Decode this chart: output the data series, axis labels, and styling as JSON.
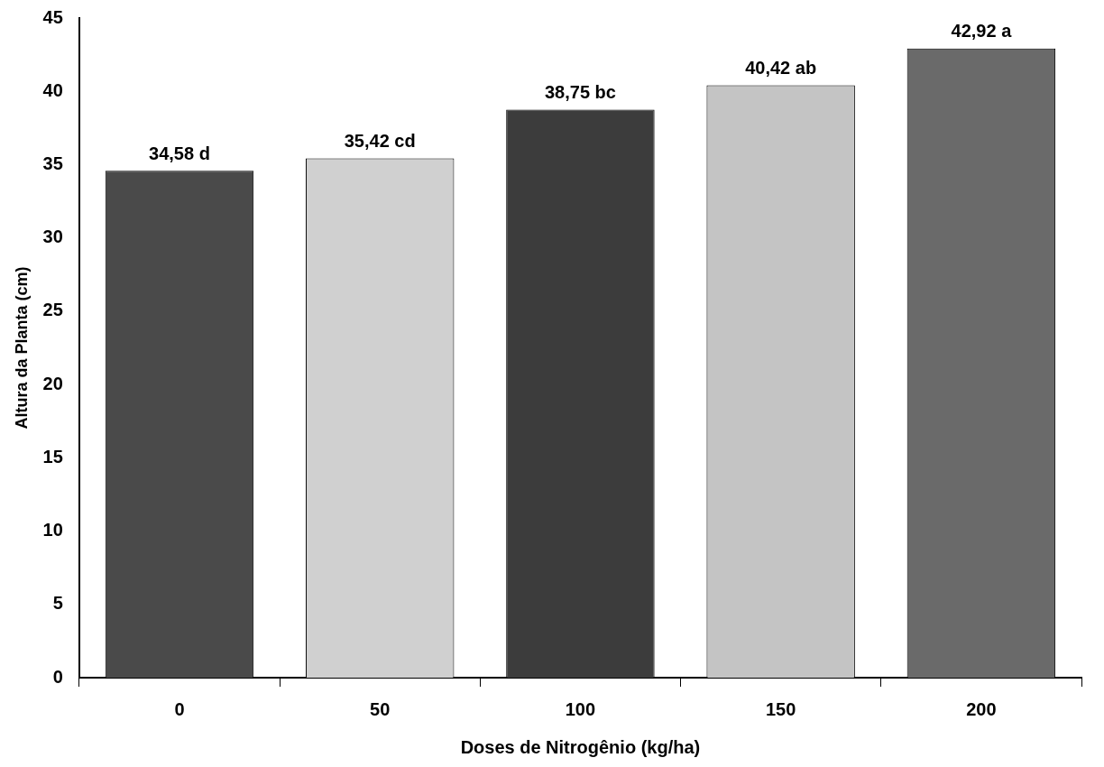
{
  "chart_data": {
    "type": "bar",
    "categories": [
      "0",
      "50",
      "100",
      "150",
      "200"
    ],
    "values": [
      34.58,
      35.42,
      38.75,
      40.42,
      42.92
    ],
    "value_labels": [
      "34,58 d",
      "35,42 cd",
      "38,75 bc",
      "40,42 ab",
      "42,92 a"
    ],
    "colors": [
      "#4a4a4a",
      "#d0d0d0",
      "#3c3c3c",
      "#c4c4c4",
      "#6a6a6a"
    ],
    "xlabel": "Doses de Nitrogênio (kg/ha)",
    "ylabel": "Altura da Planta (cm)",
    "ylim": [
      0,
      45
    ],
    "yticks": [
      0,
      5,
      10,
      15,
      20,
      25,
      30,
      35,
      40,
      45
    ]
  }
}
